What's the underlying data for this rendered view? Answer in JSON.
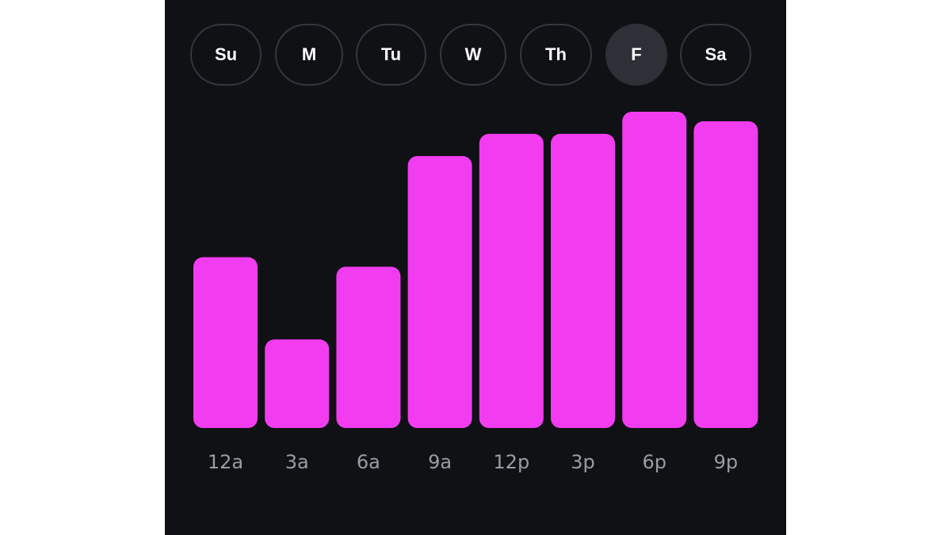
{
  "days": [
    {
      "label": "Su",
      "selected": false
    },
    {
      "label": "M",
      "selected": false
    },
    {
      "label": "Tu",
      "selected": false
    },
    {
      "label": "W",
      "selected": false
    },
    {
      "label": "Th",
      "selected": false
    },
    {
      "label": "F",
      "selected": true
    },
    {
      "label": "Sa",
      "selected": false
    }
  ],
  "colors": {
    "background": "#0f1115",
    "bar": "#f23cf0",
    "tick_label": "#9a9ca2",
    "pill_border": "#34373d",
    "pill_selected": "#2d3036"
  },
  "chart_data": {
    "type": "bar",
    "title": "",
    "xlabel": "",
    "ylabel": "",
    "categories": [
      "12a",
      "3a",
      "6a",
      "9a",
      "12p",
      "3p",
      "6p",
      "9p"
    ],
    "values": [
      54,
      28,
      51,
      86,
      93,
      93,
      100,
      97
    ],
    "ylim": [
      0,
      100
    ],
    "grid": false,
    "legend": "none"
  }
}
